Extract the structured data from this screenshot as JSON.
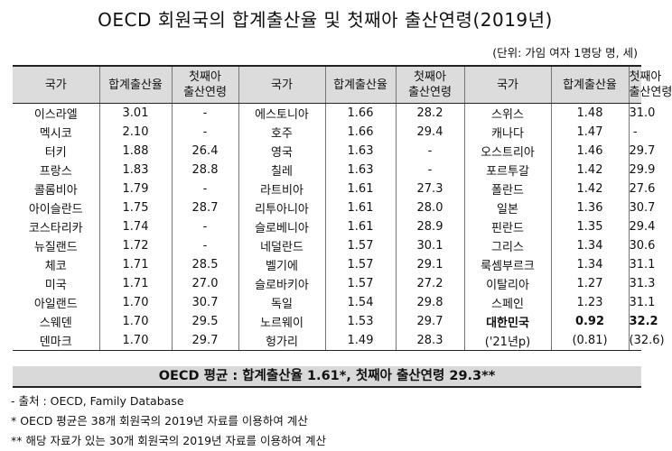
{
  "title": "OECD 회원국의 합계출산율 및 첫째아 출산연령(2019년)",
  "unit": "(단위: 가임 여자 1명당 명, 세)",
  "headers": {
    "country": "국가",
    "tfr": "합계출산율",
    "age_line1": "첫째아",
    "age_line2": "출산연령"
  },
  "rows": [
    [
      {
        "c": "이스라엘",
        "f": "3.01",
        "a": "-"
      },
      {
        "c": "에스토니아",
        "f": "1.66",
        "a": "28.2"
      },
      {
        "c": "스위스",
        "f": "1.48",
        "a": "31.0"
      }
    ],
    [
      {
        "c": "멕시코",
        "f": "2.10",
        "a": "-"
      },
      {
        "c": "호주",
        "f": "1.66",
        "a": "29.4"
      },
      {
        "c": "캐나다",
        "f": "1.47",
        "a": "-"
      }
    ],
    [
      {
        "c": "터키",
        "f": "1.88",
        "a": "26.4"
      },
      {
        "c": "영국",
        "f": "1.63",
        "a": "-"
      },
      {
        "c": "오스트리아",
        "f": "1.46",
        "a": "29.7"
      }
    ],
    [
      {
        "c": "프랑스",
        "f": "1.83",
        "a": "28.8"
      },
      {
        "c": "칠레",
        "f": "1.63",
        "a": "-"
      },
      {
        "c": "포르투갈",
        "f": "1.42",
        "a": "29.9"
      }
    ],
    [
      {
        "c": "콜롬비아",
        "f": "1.79",
        "a": "-"
      },
      {
        "c": "라트비아",
        "f": "1.61",
        "a": "27.3"
      },
      {
        "c": "폴란드",
        "f": "1.42",
        "a": "27.6"
      }
    ],
    [
      {
        "c": "아이슬란드",
        "f": "1.75",
        "a": "28.7"
      },
      {
        "c": "리투아니아",
        "f": "1.61",
        "a": "28.0"
      },
      {
        "c": "일본",
        "f": "1.36",
        "a": "30.7"
      }
    ],
    [
      {
        "c": "코스타리카",
        "f": "1.74",
        "a": "-"
      },
      {
        "c": "슬로베니아",
        "f": "1.61",
        "a": "28.9"
      },
      {
        "c": "핀란드",
        "f": "1.35",
        "a": "29.4"
      }
    ],
    [
      {
        "c": "뉴질랜드",
        "f": "1.72",
        "a": "-"
      },
      {
        "c": "네덜란드",
        "f": "1.57",
        "a": "30.1"
      },
      {
        "c": "그리스",
        "f": "1.34",
        "a": "30.6"
      }
    ],
    [
      {
        "c": "체코",
        "f": "1.71",
        "a": "28.5"
      },
      {
        "c": "벨기에",
        "f": "1.57",
        "a": "29.1"
      },
      {
        "c": "룩셈부르크",
        "f": "1.34",
        "a": "31.1"
      }
    ],
    [
      {
        "c": "미국",
        "f": "1.71",
        "a": "27.0"
      },
      {
        "c": "슬로바키아",
        "f": "1.57",
        "a": "27.2"
      },
      {
        "c": "이탈리아",
        "f": "1.27",
        "a": "31.3"
      }
    ],
    [
      {
        "c": "아일랜드",
        "f": "1.70",
        "a": "30.7"
      },
      {
        "c": "독일",
        "f": "1.54",
        "a": "29.8"
      },
      {
        "c": "스페인",
        "f": "1.23",
        "a": "31.1"
      }
    ],
    [
      {
        "c": "스웨덴",
        "f": "1.70",
        "a": "29.5"
      },
      {
        "c": "노르웨이",
        "f": "1.53",
        "a": "29.7"
      },
      {
        "c": "대한민국",
        "f": "0.92",
        "a": "32.2",
        "bold": true
      }
    ],
    [
      {
        "c": "덴마크",
        "f": "1.70",
        "a": "29.7"
      },
      {
        "c": "헝가리",
        "f": "1.49",
        "a": "28.3"
      },
      {
        "c": "('21년p)",
        "f": "(0.81)",
        "a": "(32.6)"
      }
    ]
  ],
  "average": "OECD 평균 : 합계출산율 1.61*, 첫째아 출산연령 29.3**",
  "notes": [
    "- 출처 : OECD, Family Database",
    "* OECD 평균은 38개 회원국의 2019년 자료를 이용하여 계산",
    "** 해당 자료가 있는 30개 회원국의 2019년 자료를 이용하여 계산"
  ]
}
